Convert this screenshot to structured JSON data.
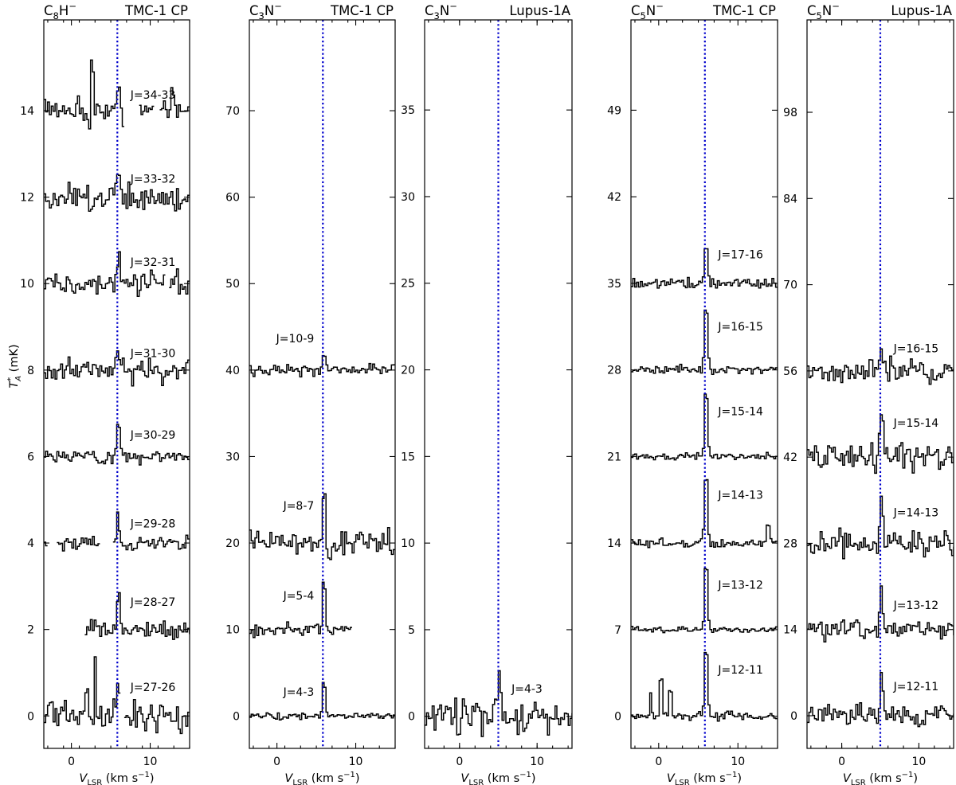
{
  "figure": {
    "ylabel": "T*A (mK)",
    "panels": [
      {
        "species": "C8H−",
        "source": "TMC-1 CP",
        "xlim": [
          -3.5,
          15
        ],
        "ylim": [
          -0.75,
          16.1
        ],
        "yticks": [
          0,
          2,
          4,
          6,
          8,
          10,
          12,
          14
        ],
        "xticks": [
          0,
          10
        ],
        "xlabel": "VLSR (km s−1)",
        "vlsr": 5.83,
        "transitions": [
          {
            "label": "J=27-26",
            "offset": 0,
            "peak": 1.05,
            "rms": 0.27,
            "vstart": -3.5,
            "vend": 15,
            "gaps": [
              [
                6.3,
                6.6
              ]
            ],
            "bumps": [
              [
                3.0,
                1.1
              ],
              [
                2.0,
                0.5
              ],
              [
                -2.5,
                0.4
              ]
            ],
            "seed": 11
          },
          {
            "label": "J=28-27",
            "offset": 2,
            "peak": 1.0,
            "rms": 0.15,
            "vstart": 1.7,
            "vend": 15,
            "gaps": [],
            "bumps": [],
            "seed": 12
          },
          {
            "label": "J=29-28",
            "offset": 4,
            "peak": 0.65,
            "rms": 0.13,
            "vstart": -3.5,
            "vend": 15,
            "gaps": [
              [
                -3.1,
                -1.8
              ],
              [
                3.5,
                5.2
              ]
            ],
            "bumps": [],
            "seed": 13
          },
          {
            "label": "J=30-29",
            "offset": 6,
            "peak": 0.75,
            "rms": 0.12,
            "vstart": -3.5,
            "vend": 15,
            "gaps": [],
            "bumps": [],
            "seed": 14
          },
          {
            "label": "J=31-30",
            "offset": 8,
            "peak": 0.55,
            "rms": 0.18,
            "vstart": -3.5,
            "vend": 15,
            "gaps": [],
            "bumps": [],
            "seed": 15
          },
          {
            "label": "J=32-31",
            "offset": 10,
            "peak": 0.75,
            "rms": 0.2,
            "vstart": -3.5,
            "vend": 15,
            "gaps": [
              [
                12.0,
                12.5
              ]
            ],
            "bumps": [],
            "seed": 16
          },
          {
            "label": "J=33-32",
            "offset": 12,
            "peak": 0.6,
            "rms": 0.22,
            "vstart": -3.5,
            "vend": 15,
            "gaps": [],
            "bumps": [],
            "seed": 17
          },
          {
            "label": "J=34-33",
            "offset": 14,
            "peak": 0.5,
            "rms": 0.2,
            "vstart": -3.5,
            "vend": 15,
            "gaps": [
              [
                6.8,
                8.5
              ],
              [
                10.5,
                11.2
              ]
            ],
            "bumps": [
              [
                2.7,
                0.9
              ],
              [
                12.8,
                0.3
              ]
            ],
            "seed": 18
          }
        ]
      },
      {
        "species": "C3N−",
        "source": "TMC-1 CP",
        "xlim": [
          -3.5,
          15
        ],
        "ylim": [
          -3.75,
          80.5
        ],
        "yticks": [
          0,
          10,
          20,
          30,
          40,
          50,
          60,
          70
        ],
        "xticks": [
          0,
          10
        ],
        "xlabel": "VLSR (km s−1)",
        "vlsr": 5.83,
        "transitions": [
          {
            "label": "J=4-3",
            "offset": 0,
            "peak": 4.2,
            "rms": 0.25,
            "vstart": -3.5,
            "vend": 15,
            "gaps": [],
            "bumps": [],
            "seed": 21
          },
          {
            "label": "J=5-4",
            "offset": 10,
            "peak": 6.3,
            "rms": 0.5,
            "vstart": -3.5,
            "vend": 9.5,
            "gaps": [],
            "bumps": [],
            "seed": 22
          },
          {
            "label": "J=8-7",
            "offset": 20,
            "peak": 7.0,
            "rms": 1.2,
            "vstart": -3.5,
            "vend": 15,
            "gaps": [],
            "bumps": [],
            "seed": 23
          },
          {
            "label": "J=10-9",
            "offset": 40,
            "peak": 2.3,
            "rms": 0.5,
            "vstart": -3.5,
            "vend": 15,
            "gaps": [],
            "bumps": [],
            "seed": 24
          }
        ]
      },
      {
        "species": "C3N−",
        "source": "Lupus-1A",
        "xlim": [
          -4.5,
          14.5
        ],
        "ylim": [
          -1.85,
          40.2
        ],
        "yticks": [
          0,
          5,
          10,
          15,
          20,
          25,
          30,
          35
        ],
        "xticks": [
          0,
          10
        ],
        "xlabel": "VLSR (km s−1)",
        "vlsr": 5.0,
        "transitions": [
          {
            "label": "J=4-3",
            "offset": 0,
            "peak": 2.5,
            "rms": 0.7,
            "vstart": -4.5,
            "vend": 14.5,
            "gaps": [],
            "bumps": [
              [
                2.3,
                1.2
              ]
            ],
            "seed": 31
          }
        ]
      },
      {
        "species": "C5N−",
        "source": "TMC-1 CP",
        "xlim": [
          -3.5,
          15
        ],
        "ylim": [
          -2.6,
          56.3
        ],
        "yticks": [
          0,
          7,
          14,
          21,
          28,
          35,
          42,
          49
        ],
        "xticks": [
          0,
          10
        ],
        "xlabel": "VLSR (km s−1)",
        "vlsr": 5.83,
        "transitions": [
          {
            "label": "J=12-11",
            "offset": 0,
            "peak": 6.3,
            "rms": 0.25,
            "vstart": -3.5,
            "vend": 15,
            "gaps": [],
            "bumps": [
              [
                -1.0,
                2.0
              ],
              [
                0.3,
                3.0
              ],
              [
                1.5,
                2.0
              ]
            ],
            "seed": 41
          },
          {
            "label": "J=13-12",
            "offset": 7,
            "peak": 6.0,
            "rms": 0.2,
            "vstart": -3.5,
            "vend": 15,
            "gaps": [],
            "bumps": [],
            "seed": 42
          },
          {
            "label": "J=14-13",
            "offset": 14,
            "peak": 6.5,
            "rms": 0.25,
            "vstart": -3.5,
            "vend": 15,
            "gaps": [],
            "bumps": [
              [
                13.8,
                1.5
              ]
            ],
            "seed": 43
          },
          {
            "label": "J=15-14",
            "offset": 21,
            "peak": 6.1,
            "rms": 0.2,
            "vstart": -3.5,
            "vend": 15,
            "gaps": [],
            "bumps": [],
            "seed": 44
          },
          {
            "label": "J=16-15",
            "offset": 28,
            "peak": 5.8,
            "rms": 0.25,
            "vstart": -3.5,
            "vend": 15,
            "gaps": [],
            "bumps": [],
            "seed": 45
          },
          {
            "label": "J=17-16",
            "offset": 35,
            "peak": 3.7,
            "rms": 0.3,
            "vstart": -3.5,
            "vend": 15,
            "gaps": [],
            "bumps": [],
            "seed": 46
          }
        ]
      },
      {
        "species": "C5N−",
        "source": "Lupus-1A",
        "xlim": [
          -4.5,
          14.5
        ],
        "ylim": [
          -5.3,
          113
        ],
        "yticks": [
          0,
          14,
          28,
          42,
          56,
          70,
          84,
          98
        ],
        "xticks": [
          0,
          10
        ],
        "xlabel": "VLSR (km s−1)",
        "vlsr": 5.0,
        "transitions": [
          {
            "label": "J=12-11",
            "offset": 0,
            "peak": 7.5,
            "rms": 1.2,
            "vstart": -4.5,
            "vend": 14.5,
            "gaps": [],
            "bumps": [],
            "seed": 51
          },
          {
            "label": "J=13-12",
            "offset": 14,
            "peak": 6.0,
            "rms": 1.2,
            "vstart": -4.5,
            "vend": 14.5,
            "gaps": [],
            "bumps": [],
            "seed": 52
          },
          {
            "label": "J=14-13",
            "offset": 28,
            "peak": 8.0,
            "rms": 1.6,
            "vstart": -4.5,
            "vend": 14.5,
            "gaps": [],
            "bumps": [],
            "seed": 53
          },
          {
            "label": "J=15-14",
            "offset": 42,
            "peak": 9.0,
            "rms": 1.6,
            "vstart": -4.5,
            "vend": 14.5,
            "gaps": [],
            "bumps": [],
            "seed": 54
          },
          {
            "label": "J=16-15",
            "offset": 56,
            "peak": 5.5,
            "rms": 1.6,
            "vstart": -4.5,
            "vend": 14.5,
            "gaps": [],
            "bumps": [],
            "seed": 55
          }
        ]
      }
    ]
  }
}
